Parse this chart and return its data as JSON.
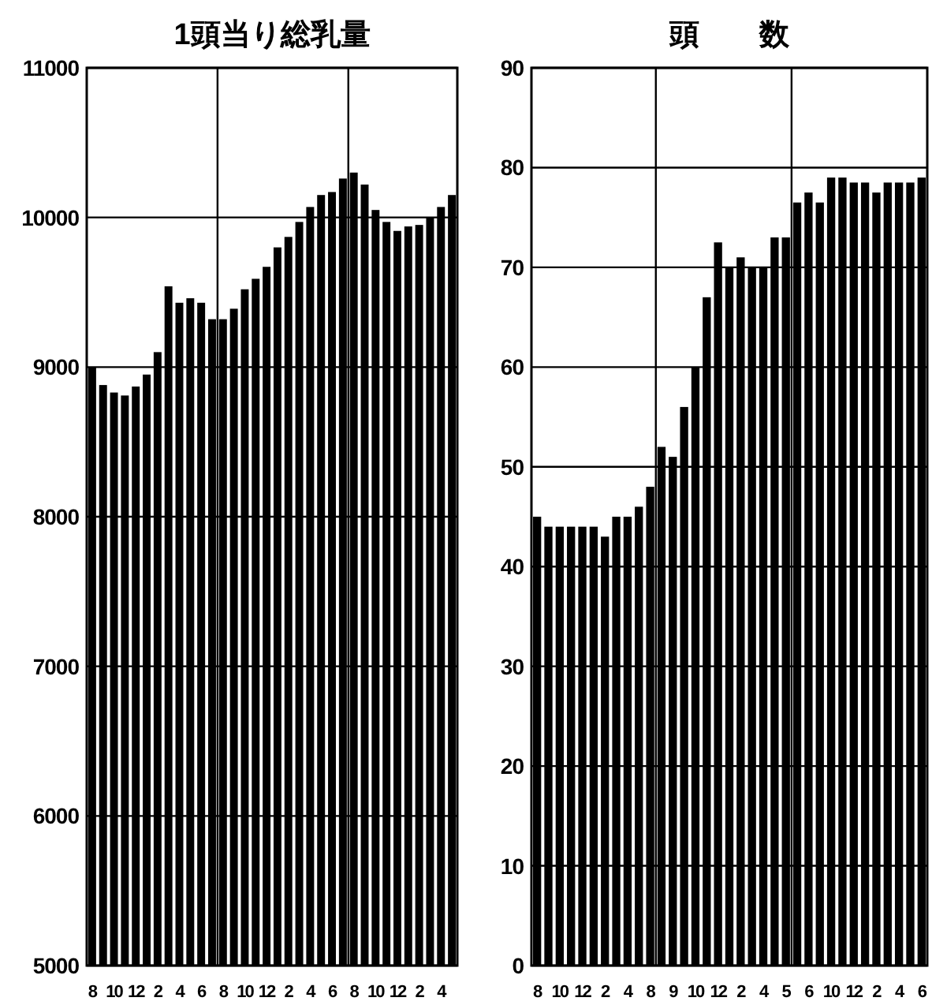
{
  "chart_data": [
    {
      "type": "bar",
      "title": "1頭当り総乳量",
      "categories": [
        "8",
        null,
        "10",
        null,
        "12",
        null,
        "2",
        null,
        "4",
        null,
        "6",
        null,
        "8",
        null,
        "10",
        null,
        "12",
        null,
        "2",
        null,
        "4",
        null,
        "6",
        null,
        "8",
        null,
        "10",
        null,
        "12",
        null,
        "2",
        null,
        "4",
        null
      ],
      "values": [
        9000,
        8880,
        8830,
        8810,
        8870,
        8950,
        9100,
        9540,
        9430,
        9460,
        9430,
        9320,
        9320,
        9390,
        9520,
        9590,
        9670,
        9800,
        9870,
        9970,
        10070,
        10150,
        10170,
        10260,
        10300,
        10220,
        10050,
        9970,
        9910,
        9940,
        9950,
        10000,
        10070,
        10150
      ],
      "color": "#000000",
      "ylim": [
        5000,
        11000
      ],
      "yticks": [
        5000,
        6000,
        7000,
        8000,
        9000,
        10000,
        11000
      ],
      "grid": "y"
    },
    {
      "type": "bar",
      "title": "頭　　数",
      "categories": [
        "8",
        null,
        "10",
        null,
        "12",
        null,
        "2",
        null,
        "4",
        null,
        "8",
        null,
        "9",
        null,
        "10",
        null,
        "12",
        null,
        "2",
        null,
        "4",
        null,
        "5",
        null,
        "6",
        null,
        "10",
        null,
        "12",
        null,
        "2",
        null,
        "4",
        null,
        "6"
      ],
      "values": [
        45,
        44,
        44,
        44,
        44,
        44,
        43,
        45,
        45,
        46,
        48,
        52,
        51,
        56,
        60,
        67,
        72.5,
        70,
        71,
        70,
        70,
        73,
        73,
        76.5,
        77.5,
        76.5,
        79,
        79,
        78.5,
        78.5,
        77.5,
        78.5,
        78.5,
        78.5,
        79
      ],
      "color": "#000000",
      "ylim": [
        0,
        90
      ],
      "yticks": [
        0,
        10,
        20,
        30,
        40,
        50,
        60,
        70,
        80,
        90
      ],
      "grid": "y"
    }
  ]
}
